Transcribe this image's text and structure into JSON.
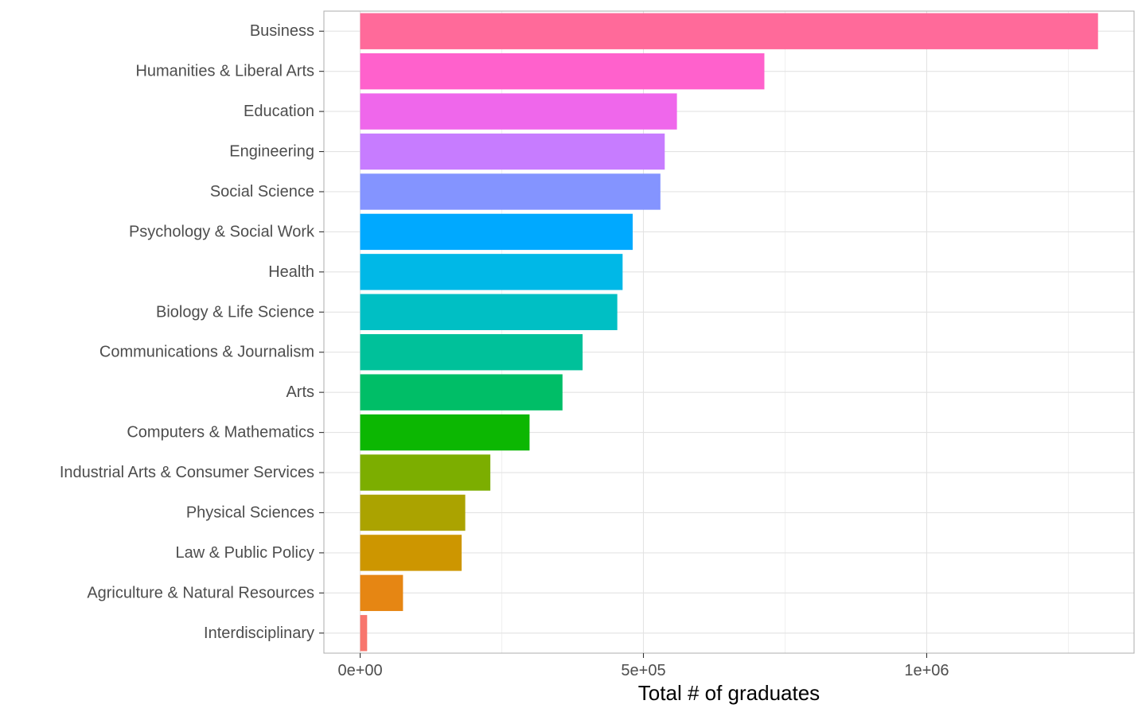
{
  "chart_data": {
    "type": "bar",
    "orientation": "horizontal",
    "categories": [
      "Business",
      "Humanities & Liberal Arts",
      "Education",
      "Engineering",
      "Social Science",
      "Psychology & Social Work",
      "Health",
      "Biology & Life Science",
      "Communications & Journalism",
      "Arts",
      "Computers & Mathematics",
      "Industrial Arts & Consumer Services",
      "Physical Sciences",
      "Law & Public Policy",
      "Agriculture & Natural Resources",
      "Interdisciplinary"
    ],
    "values": [
      1302376,
      713468,
      559129,
      537583,
      529966,
      481007,
      463230,
      453862,
      392601,
      357130,
      299008,
      229792,
      185479,
      179107,
      75620,
      12296
    ],
    "colors": [
      "#FF6A9A",
      "#FF61CC",
      "#EF67EB",
      "#C77CFF",
      "#8494FF",
      "#00A9FF",
      "#00B8E7",
      "#00BFC4",
      "#00C19A",
      "#00BE67",
      "#0CB702",
      "#7CAE00",
      "#ABA300",
      "#CD9600",
      "#E68613",
      "#F8766D"
    ],
    "xlabel": "Total # of graduates",
    "ylabel": "",
    "xlim": [
      -64000,
      1366000
    ],
    "x_ticks": [
      {
        "value": 0,
        "label": "0e+00"
      },
      {
        "value": 500000,
        "label": "5e+05"
      },
      {
        "value": 1000000,
        "label": "1e+06"
      }
    ],
    "x_minor_ticks": [
      250000,
      750000,
      1250000
    ],
    "grid": true,
    "legend": "none"
  }
}
